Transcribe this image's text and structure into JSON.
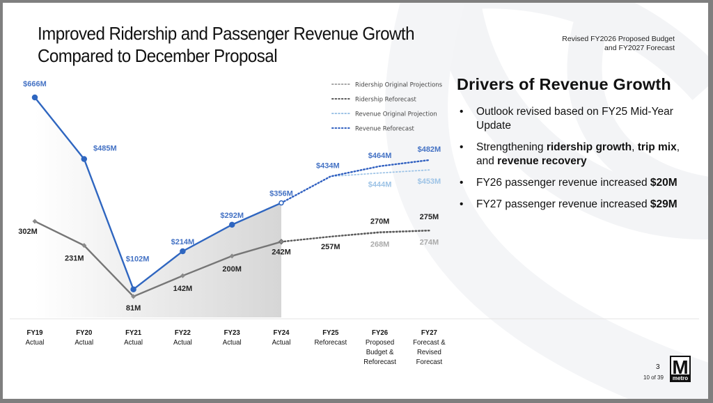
{
  "slide": {
    "title_lines": [
      "Improved Ridership and Passenger Revenue Growth",
      "Compared to December Proposal"
    ],
    "subtitle_lines": [
      "Revised FY2026 Proposed Budget",
      "and FY2027 Forecast"
    ],
    "page_number": "3",
    "page_of": "10 of 39",
    "logo": {
      "letter": "M",
      "text": "metro"
    }
  },
  "drivers": {
    "title": "Drivers of Revenue Growth",
    "bullets": [
      {
        "parts": [
          {
            "text": "Outlook revised based on FY25 Mid-Year Update",
            "bold": false
          }
        ]
      },
      {
        "parts": [
          {
            "text": "Strengthening ",
            "bold": false
          },
          {
            "text": "ridership growth",
            "bold": true
          },
          {
            "text": ", ",
            "bold": false
          },
          {
            "text": "trip mix",
            "bold": true
          },
          {
            "text": ", and ",
            "bold": false
          },
          {
            "text": "revenue recovery",
            "bold": true
          }
        ]
      },
      {
        "parts": [
          {
            "text": "FY26 passenger revenue increased ",
            "bold": false
          },
          {
            "text": "$20M",
            "bold": true
          }
        ]
      },
      {
        "parts": [
          {
            "text": "FY27 passenger revenue increased ",
            "bold": false
          },
          {
            "text": "$29M",
            "bold": true
          }
        ]
      }
    ]
  },
  "chart_data": {
    "type": "line",
    "title": "",
    "xlabel": "",
    "ylabel": "",
    "ylim": [
      0,
      700
    ],
    "grid": false,
    "legend_position": "top-right",
    "categories": [
      [
        "FY19",
        "Actual"
      ],
      [
        "FY20",
        "Actual"
      ],
      [
        "FY21",
        "Actual"
      ],
      [
        "FY22",
        "Actual"
      ],
      [
        "FY23",
        "Actual"
      ],
      [
        "FY24",
        "Actual"
      ],
      [
        "FY25",
        "Reforecast"
      ],
      [
        "FY26",
        "Proposed",
        "Budget &",
        "Reforecast"
      ],
      [
        "FY27",
        "Forecast &",
        "Revised",
        "Forecast"
      ]
    ],
    "actual_through_index": 5,
    "series": [
      {
        "name": "Revenue Actual",
        "style": "solid",
        "color": "#2f66c0",
        "label_color": "#4472c4",
        "values": [
          666,
          485,
          102,
          214,
          292,
          356,
          null,
          null,
          null
        ],
        "labels": [
          "$666M",
          "$485M",
          "$102M",
          "$214M",
          "$292M",
          "$356M",
          null,
          null,
          null
        ]
      },
      {
        "name": "Ridership Actual",
        "style": "solid",
        "color": "#767676",
        "label_color": "#222222",
        "values": [
          302,
          231,
          81,
          142,
          200,
          242,
          null,
          null,
          null
        ],
        "labels": [
          "302M",
          "231M",
          "81M",
          "142M",
          "200M",
          "242M",
          null,
          null,
          null
        ]
      },
      {
        "name": "Revenue Original Projection",
        "style": "dotted",
        "color": "#9dc3e6",
        "label_color": "#9dc3e6",
        "in_legend": true,
        "values": [
          null,
          null,
          null,
          null,
          null,
          356,
          434,
          444,
          453
        ],
        "labels": [
          null,
          null,
          null,
          null,
          null,
          null,
          null,
          "$444M",
          "$453M"
        ]
      },
      {
        "name": "Revenue Reforecast",
        "style": "dotted",
        "color": "#2f5fc0",
        "label_color": "#4472c4",
        "in_legend": true,
        "values": [
          null,
          null,
          null,
          null,
          null,
          356,
          434,
          464,
          482
        ],
        "labels": [
          null,
          null,
          null,
          null,
          null,
          null,
          "$434M",
          "$464M",
          "$482M"
        ]
      },
      {
        "name": "Ridership Original Projections",
        "style": "dotted",
        "color": "#a6a6a6",
        "label_color": "#aaaaaa",
        "in_legend": true,
        "values": [
          null,
          null,
          null,
          null,
          null,
          242,
          257,
          268,
          274
        ],
        "labels": [
          null,
          null,
          null,
          null,
          null,
          null,
          null,
          "268M",
          "274M"
        ]
      },
      {
        "name": "Ridership Reforecast",
        "style": "dotted",
        "color": "#595959",
        "label_color": "#222222",
        "in_legend": true,
        "values": [
          null,
          null,
          null,
          null,
          null,
          242,
          257,
          270,
          275
        ],
        "labels": [
          null,
          null,
          null,
          null,
          null,
          null,
          "257M",
          "270M",
          "275M"
        ]
      }
    ],
    "legend": [
      {
        "name": "Ridership Original Projections",
        "color": "#a6a6a6"
      },
      {
        "name": "Ridership Reforecast",
        "color": "#595959"
      },
      {
        "name": "Revenue Original Projection",
        "color": "#9dc3e6"
      },
      {
        "name": "Revenue Reforecast",
        "color": "#2f5fc0"
      }
    ]
  }
}
